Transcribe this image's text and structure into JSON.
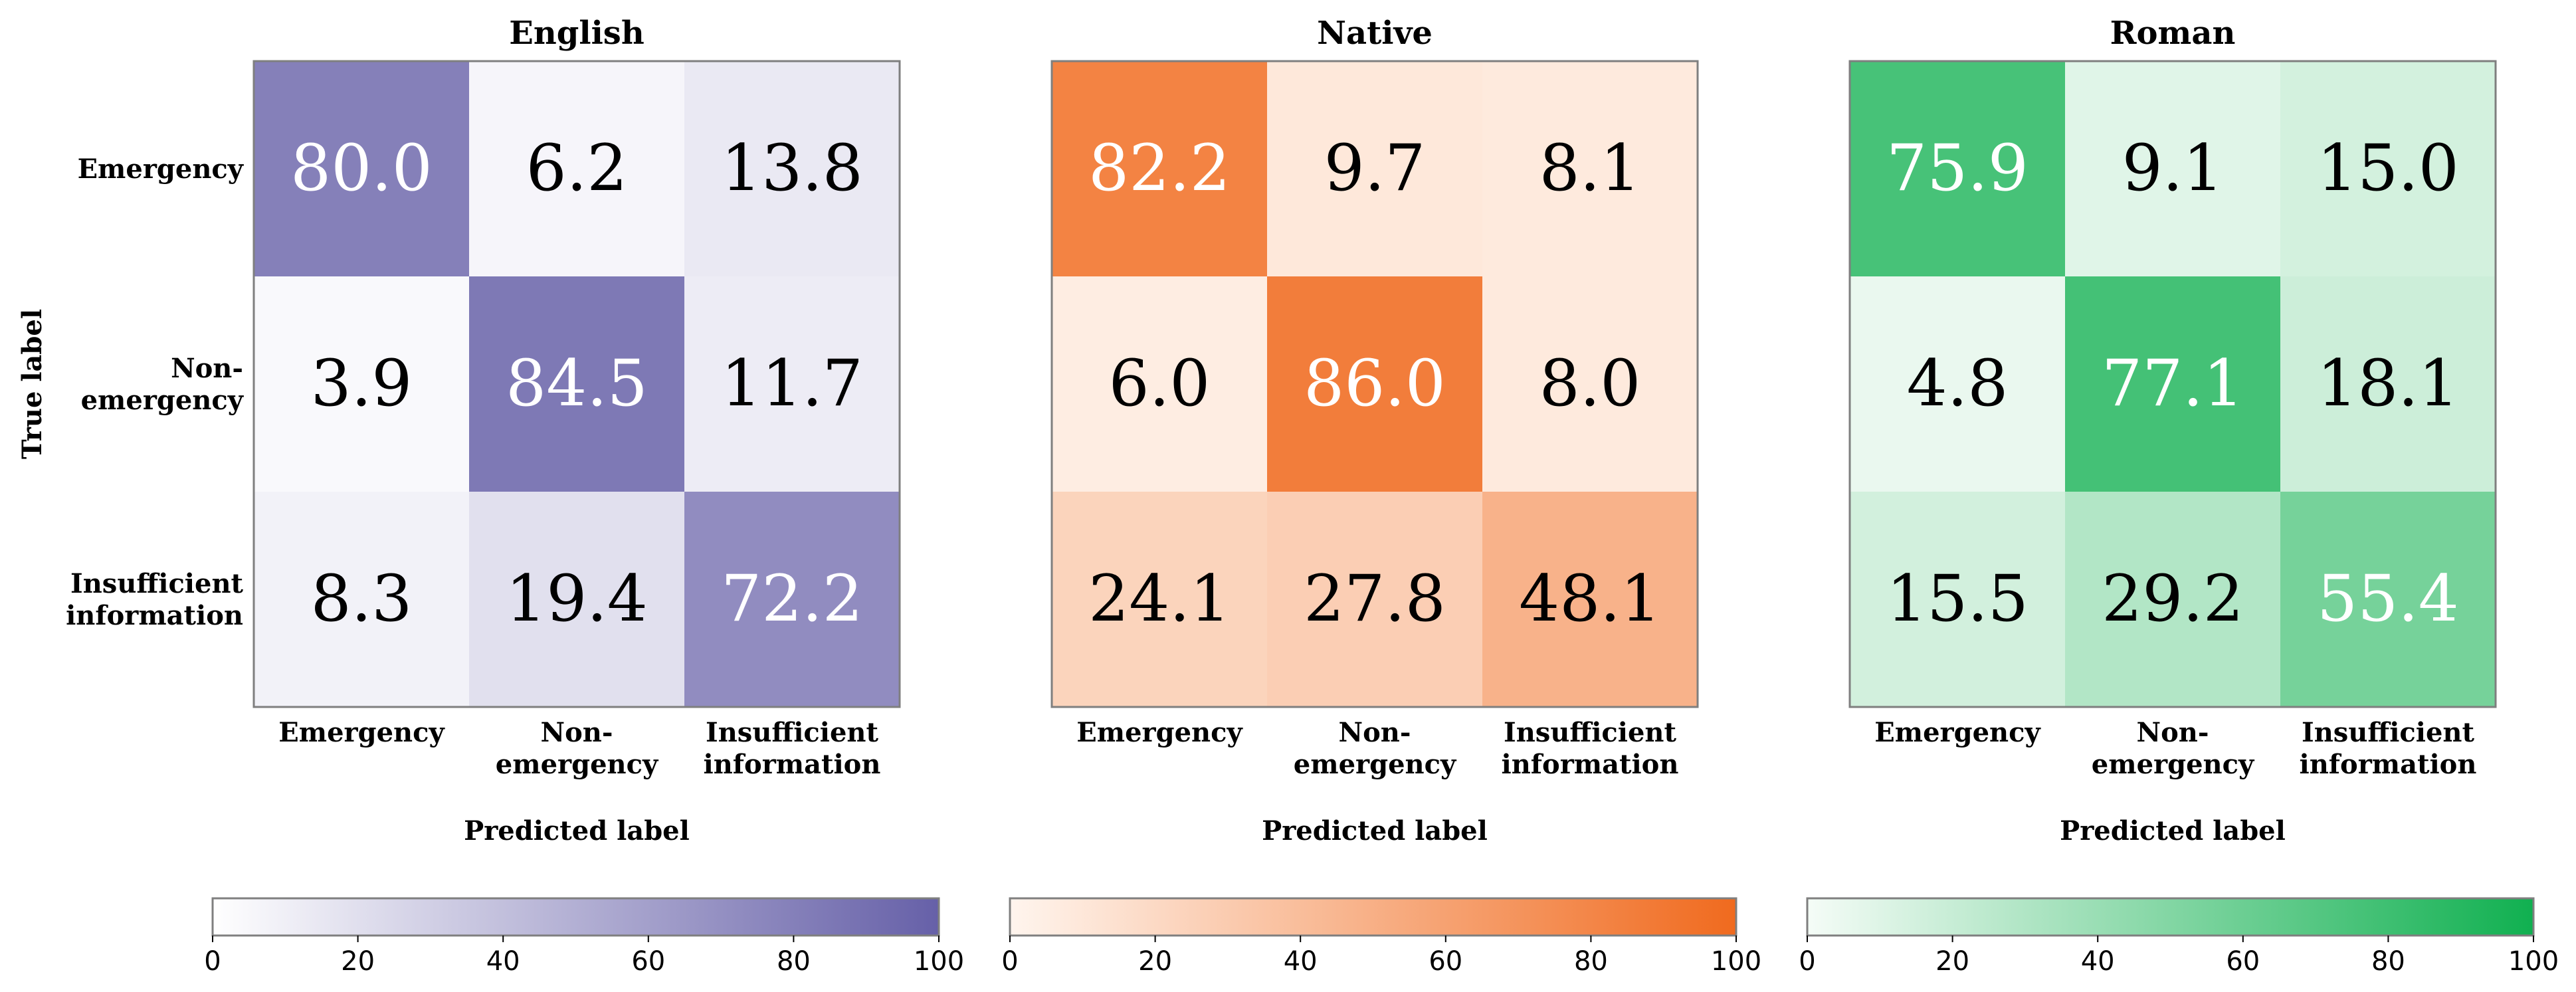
{
  "chart_data": [
    {
      "type": "heatmap",
      "title": "English",
      "xlabel": "Predicted label",
      "ylabel": "True label",
      "row_labels": [
        [
          "Emergency"
        ],
        [
          "Non-",
          "emergency"
        ],
        [
          "Insufficient",
          "information"
        ]
      ],
      "col_labels": [
        [
          "Emergency"
        ],
        [
          "Non-",
          "emergency"
        ],
        [
          "Insufficient",
          "information"
        ]
      ],
      "values": [
        [
          80.0,
          6.2,
          13.8
        ],
        [
          3.9,
          84.5,
          11.7
        ],
        [
          8.3,
          19.4,
          72.2
        ]
      ],
      "value_labels": [
        [
          "80.0",
          "6.2",
          "13.8"
        ],
        [
          "3.9",
          "84.5",
          "11.7"
        ],
        [
          "8.3",
          "19.4",
          "72.2"
        ]
      ],
      "colorbar": {
        "range": [
          0,
          100
        ],
        "ticks": [
          0,
          20,
          40,
          60,
          80,
          100
        ],
        "tick_labels": [
          "0",
          "20",
          "40",
          "60",
          "80",
          "100"
        ],
        "color_min": "#ffffff",
        "color_max": "#6660a8"
      }
    },
    {
      "type": "heatmap",
      "title": "Native",
      "xlabel": "Predicted label",
      "ylabel": "",
      "row_labels": [],
      "col_labels": [
        [
          "Emergency"
        ],
        [
          "Non-",
          "emergency"
        ],
        [
          "Insufficient",
          "information"
        ]
      ],
      "values": [
        [
          82.2,
          9.7,
          8.1
        ],
        [
          6.0,
          86.0,
          8.0
        ],
        [
          24.1,
          27.8,
          48.1
        ]
      ],
      "value_labels": [
        [
          "82.2",
          "9.7",
          "8.1"
        ],
        [
          "6.0",
          "86.0",
          "8.0"
        ],
        [
          "24.1",
          "27.8",
          "48.1"
        ]
      ],
      "colorbar": {
        "range": [
          0,
          100
        ],
        "ticks": [
          0,
          20,
          40,
          60,
          80,
          100
        ],
        "tick_labels": [
          "0",
          "20",
          "40",
          "60",
          "80",
          "100"
        ],
        "color_min": "#fff5ee",
        "color_max": "#f06a1e"
      }
    },
    {
      "type": "heatmap",
      "title": "Roman",
      "xlabel": "Predicted label",
      "ylabel": "",
      "row_labels": [],
      "col_labels": [
        [
          "Emergency"
        ],
        [
          "Non-",
          "emergency"
        ],
        [
          "Insufficient",
          "information"
        ]
      ],
      "values": [
        [
          75.9,
          9.1,
          15.0
        ],
        [
          4.8,
          77.1,
          18.1
        ],
        [
          15.5,
          29.2,
          55.4
        ]
      ],
      "value_labels": [
        [
          "75.9",
          "9.1",
          "15.0"
        ],
        [
          "4.8",
          "77.1",
          "18.1"
        ],
        [
          "15.5",
          "29.2",
          "55.4"
        ]
      ],
      "colorbar": {
        "range": [
          0,
          100
        ],
        "ticks": [
          0,
          20,
          40,
          60,
          80,
          100
        ],
        "tick_labels": [
          "0",
          "20",
          "40",
          "60",
          "80",
          "100"
        ],
        "color_min": "#f5fcf7",
        "color_max": "#10b050"
      }
    }
  ]
}
